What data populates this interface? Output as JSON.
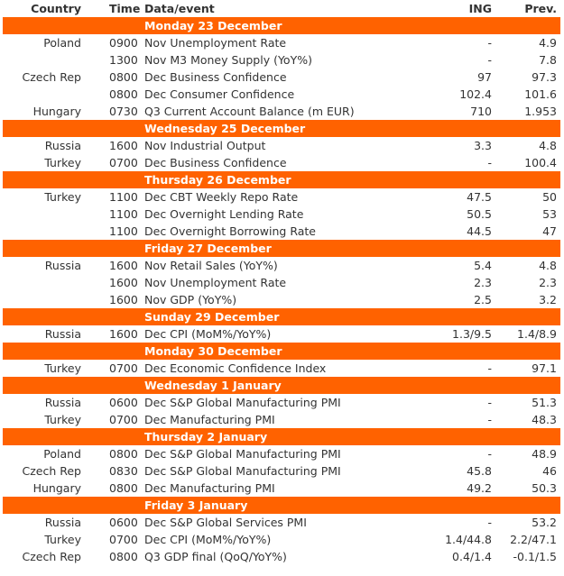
{
  "header": {
    "country": "Country",
    "time": "Time",
    "event": "Data/event",
    "ing": "ING",
    "prev": "Prev."
  },
  "days": [
    {
      "label": "Monday 23 December",
      "rows": [
        [
          "Poland",
          "0900",
          "Nov Unemployment Rate",
          "-",
          "4.9"
        ],
        [
          "",
          "1300",
          "Nov M3 Money Supply (YoY%)",
          "-",
          "7.8"
        ],
        [
          "Czech Rep",
          "0800",
          "Dec Business Confidence",
          "97",
          "97.3"
        ],
        [
          "",
          "0800",
          "Dec Consumer Confidence",
          "102.4",
          "101.6"
        ],
        [
          "Hungary",
          "0730",
          "Q3 Current Account Balance (m EUR)",
          "710",
          "1.953"
        ]
      ]
    },
    {
      "label": "Wednesday 25 December",
      "rows": [
        [
          "Russia",
          "1600",
          "Nov Industrial Output",
          "3.3",
          "4.8"
        ],
        [
          "Turkey",
          "0700",
          "Dec Business Confidence",
          "-",
          "100.4"
        ]
      ]
    },
    {
      "label": "Thursday 26 December",
      "rows": [
        [
          "Turkey",
          "1100",
          "Dec CBT Weekly Repo Rate",
          "47.5",
          "50"
        ],
        [
          "",
          "1100",
          "Dec Overnight Lending Rate",
          "50.5",
          "53"
        ],
        [
          "",
          "1100",
          "Dec Overnight Borrowing Rate",
          "44.5",
          "47"
        ]
      ]
    },
    {
      "label": "Friday 27 December",
      "rows": [
        [
          "Russia",
          "1600",
          "Nov Retail Sales (YoY%)",
          "5.4",
          "4.8"
        ],
        [
          "",
          "1600",
          "Nov Unemployment Rate",
          "2.3",
          "2.3"
        ],
        [
          "",
          "1600",
          "Nov GDP (YoY%)",
          "2.5",
          "3.2"
        ]
      ]
    },
    {
      "label": "Sunday 29 December",
      "rows": [
        [
          "Russia",
          "1600",
          "Dec CPI (MoM%/YoY%)",
          "1.3/9.5",
          "1.4/8.9"
        ]
      ]
    },
    {
      "label": "Monday 30 December",
      "rows": [
        [
          "Turkey",
          "0700",
          "Dec Economic Confidence Index",
          "-",
          "97.1"
        ]
      ]
    },
    {
      "label": "Wednesday 1 January",
      "rows": [
        [
          "Russia",
          "0600",
          "Dec S&P Global Manufacturing PMI",
          "-",
          "51.3"
        ],
        [
          "Turkey",
          "0700",
          "Dec Manufacturing PMI",
          "-",
          "48.3"
        ]
      ]
    },
    {
      "label": "Thursday 2 January",
      "rows": [
        [
          "Poland",
          "0800",
          "Dec S&P Global Manufacturing PMI",
          "-",
          "48.9"
        ],
        [
          "Czech Rep",
          "0830",
          "Dec S&P Global Manufacturing PMI",
          "45.8",
          "46"
        ],
        [
          "Hungary",
          "0800",
          "Dec Manufacturing PMI",
          "49.2",
          "50.3"
        ]
      ]
    },
    {
      "label": "Friday 3 January",
      "rows": [
        [
          "Russia",
          "0600",
          "Dec S&P Global Services PMI",
          "-",
          "53.2"
        ],
        [
          "Turkey",
          "0700",
          "Dec CPI (MoM%/YoY%)",
          "1.4/44.8",
          "2.2/47.1"
        ],
        [
          "Czech Rep",
          "0800",
          "Q3 GDP final (QoQ/YoY%)",
          "0.4/1.4",
          "-0.1/1.5"
        ]
      ]
    }
  ],
  "colors": {
    "day_bar": "#ff6200",
    "text": "#333333"
  }
}
